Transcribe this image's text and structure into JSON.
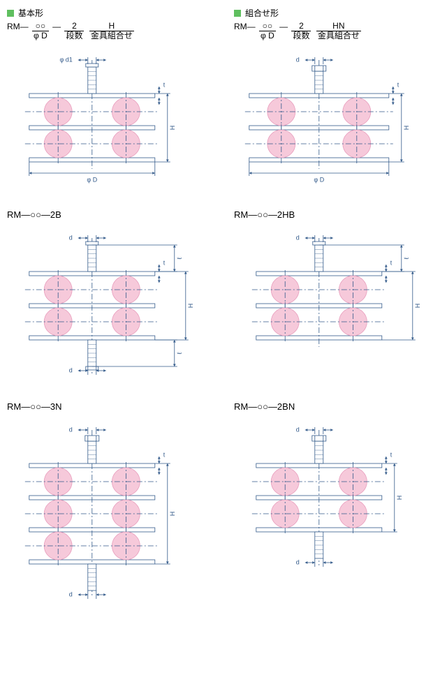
{
  "headers": {
    "left": {
      "marker_color": "#5fbf5f",
      "title": "基本形"
    },
    "right": {
      "marker_color": "#5fbf5f",
      "title": "組合せ形"
    }
  },
  "spec": {
    "left": {
      "prefix": "RM―",
      "oo": "○○",
      "frac1_top": "2",
      "frac1_bot": "段数",
      "frac2_top": "H",
      "frac2_bot": "金具組合せ",
      "phiD": "φ D"
    },
    "right": {
      "prefix": "RM―",
      "oo": "○○",
      "frac1_top": "2",
      "frac1_bot": "段数",
      "frac2_top": "HN",
      "frac2_bot": "金具組合せ",
      "phiD": "φ D"
    }
  },
  "labels": {
    "d2": "RM―○○―2B",
    "d3": "RM―○○―2HB",
    "d4": "RM―○○―3N",
    "d5": "RM―○○―2BN"
  },
  "dim": {
    "phiD": "φ D",
    "phid1": "φ d1",
    "d": "d",
    "H": "H",
    "t": "t",
    "l": "ℓ"
  },
  "style": {
    "ball_fill": "#f6c9da",
    "ball_stroke": "#e89cbc",
    "plate_stroke": "#335a8a",
    "plate_fill": "#ffffff",
    "dim_stroke": "#335a8a",
    "center_stroke": "#335a8a",
    "stud_fill": "#ffffff",
    "text_color": "#335a8a",
    "font_size": 9,
    "line_w": 0.8
  }
}
